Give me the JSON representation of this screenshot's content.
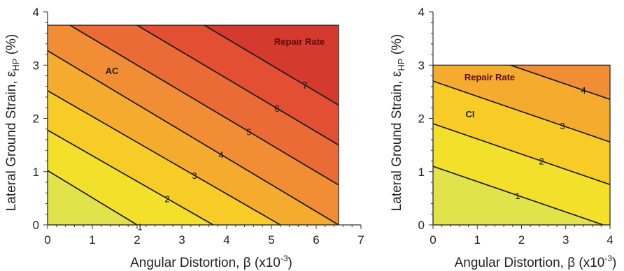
{
  "chart_data": [
    {
      "type": "contour",
      "panel_label": "AC",
      "legend_title": "Repair Rate",
      "xlabel_main": "Angular Distortion, β (x10",
      "xlabel_exp": "-3",
      "xlabel_tail": ")",
      "ylabel_main": "Lateral Ground Strain, ε",
      "ylabel_sub": "HP",
      "ylabel_tail": " (%)",
      "xlim": [
        0,
        7
      ],
      "ylim": [
        0,
        4
      ],
      "data_extent": {
        "x": [
          0,
          6.5
        ],
        "y": [
          0,
          3.75
        ]
      },
      "xticks": [
        "0",
        "1",
        "2",
        "3",
        "4",
        "5",
        "6",
        "7"
      ],
      "yticks": [
        "0",
        "1",
        "2",
        "3",
        "4"
      ],
      "contour_lines": [
        {
          "level": "1",
          "y_at_x0": 1.02,
          "x_at_y0": 2.0
        },
        {
          "level": "2",
          "y_at_x0": 1.78,
          "x_at_y0": 3.7
        },
        {
          "level": "3",
          "y_at_x0": 2.52,
          "x_at_y0": 5.2
        },
        {
          "level": "4",
          "y_at_x0": 3.27,
          "x_at_y0": 6.5
        },
        {
          "level": "5",
          "y_at_x0": 4.0,
          "x_at_y0": 8.0
        },
        {
          "level": "6",
          "y_at_x0": 4.75,
          "x_at_y0": 9.5
        },
        {
          "level": "7",
          "y_at_x0": 5.5,
          "x_at_y0": 11.0
        }
      ]
    },
    {
      "type": "contour",
      "panel_label": "CI",
      "legend_title": "Repair Rate",
      "xlabel_main": "Angular Distortion, β (x10",
      "xlabel_exp": "-3",
      "xlabel_tail": ")",
      "ylabel_main": "Lateral Ground Strain, ε",
      "ylabel_sub": "HP",
      "ylabel_tail": " (%)",
      "xlim": [
        0,
        4
      ],
      "ylim": [
        0,
        4
      ],
      "data_extent": {
        "x": [
          0,
          4
        ],
        "y": [
          0,
          3.0
        ]
      },
      "xticks": [
        "0",
        "1",
        "2",
        "3",
        "4"
      ],
      "yticks": [
        "0",
        "1",
        "2",
        "3",
        "4"
      ],
      "contour_lines": [
        {
          "level": "1",
          "y_at_x0": 1.1,
          "x_at_y0": 3.85
        },
        {
          "level": "2",
          "y_at_x0": 1.9,
          "x_at_y0": 6.65
        },
        {
          "level": "3",
          "y_at_x0": 2.7,
          "x_at_y0": 9.45
        },
        {
          "level": "4",
          "y_at_x0": 3.5,
          "x_at_y0": 12.25
        }
      ]
    }
  ],
  "colors": {
    "bands": [
      "#e2e24a",
      "#f3e02b",
      "#f8cc26",
      "#f5ac2e",
      "#f08d35",
      "#ea6b35",
      "#e24f33",
      "#d43a2e"
    ],
    "contour_line": "#1a1a1a",
    "axis": "#333333"
  }
}
